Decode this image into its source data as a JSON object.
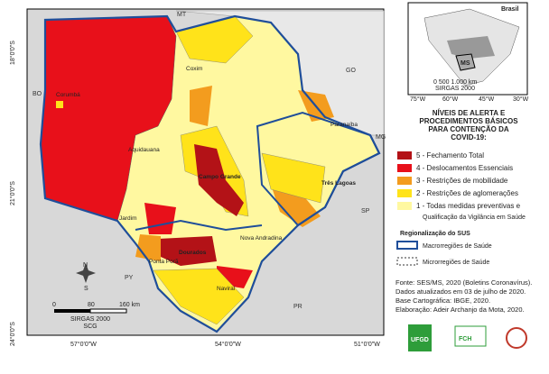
{
  "map": {
    "states": [
      "MT",
      "GO",
      "MG",
      "SP",
      "PR",
      "PY",
      "BO"
    ],
    "cities": [
      "Corumbá",
      "Coxim",
      "Aquidauana",
      "Campo Grande",
      "Jardim",
      "Ponta Porã",
      "Dourados",
      "Nova Andradina",
      "Naviraí",
      "Três Lagoas",
      "Paranaíba"
    ],
    "lat_labels": [
      "18°0'0\"S",
      "21°0'0\"S",
      "24°0'0\"S"
    ],
    "lon_labels": [
      "57°0'0\"W",
      "54°0'0\"W",
      "51°0'0\"W"
    ]
  },
  "inset": {
    "country": "Brasil",
    "state": "MS",
    "lon_labels": [
      "75°W",
      "60°W",
      "45°W",
      "30°W"
    ],
    "scale": "0  500 1.000 km",
    "datum": "SIRGAS 2000"
  },
  "legend": {
    "title": [
      "NÍVEIS DE ALERTA E",
      "PROCEDIMENTOS BÁSICOS",
      "PARA CONTENÇÃO DA",
      "COVID-19:"
    ],
    "levels": [
      "5 - Fechamento Total",
      "4 - Deslocamentos Essenciais",
      "3 - Restrições de mobilidade",
      "2 - Restrições de aglomerações",
      "1 - Todas medidas preventivas e"
    ],
    "level1_extra": "Qualificação da Vigilância em Saúde",
    "sus_title": "Regionalização do SUS",
    "sus_items": [
      "Macrorregiões de Saúde",
      "Microrregiões de Saúde"
    ]
  },
  "scale": {
    "ticks": [
      "0",
      "80",
      "160 km"
    ],
    "datum": "SIRGAS 2000",
    "city": "SCG"
  },
  "north": {
    "n": "N",
    "s": "S"
  },
  "source": [
    "Fonte: SES/MS, 2020 (Boletins Coronavírus).",
    "Dados atualizados em 03 de julho de 2020.",
    "Base Cartográfica: IBGE, 2020.",
    "Elaboração: Adeir Archanjo da Mota, 2020."
  ],
  "logos": [
    "UFGD",
    "FCH"
  ]
}
